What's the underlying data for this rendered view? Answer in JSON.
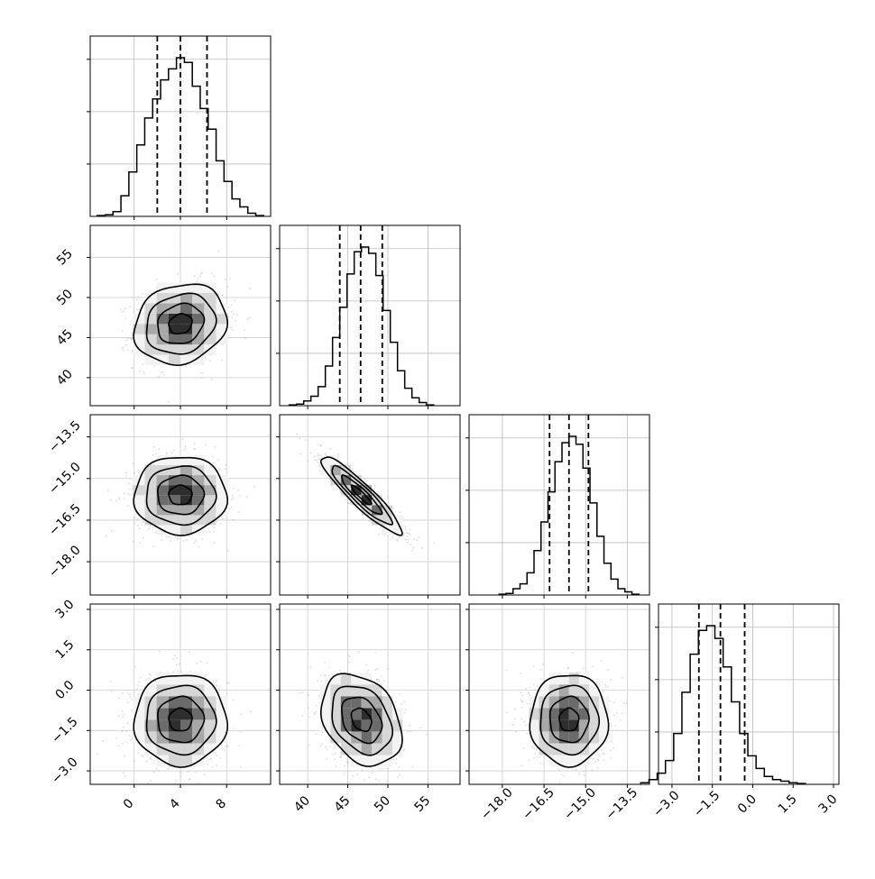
{
  "chart_data": {
    "type": "corner",
    "parameters": [
      {
        "ticks": [
          0,
          4,
          8
        ],
        "tick_labels": [
          "0",
          "4",
          "8"
        ],
        "range": [
          -3.8,
          11.8
        ],
        "quantiles": [
          2.0,
          4.0,
          6.3
        ],
        "mean": 4.0,
        "sd": 2.0
      },
      {
        "ticks": [
          40,
          45,
          50,
          55
        ],
        "tick_labels": [
          "40",
          "45",
          "50",
          "55"
        ],
        "range": [
          36.5,
          59.0
        ],
        "quantiles": [
          44.0,
          46.6,
          49.3
        ],
        "mean": 46.7,
        "sd": 2.5
      },
      {
        "ticks": [
          -18.0,
          -16.5,
          -15.0,
          -13.5
        ],
        "tick_labels": [
          "−18.0",
          "−16.5",
          "−15.0",
          "−13.5"
        ],
        "range": [
          -19.2,
          -12.7
        ],
        "quantiles": [
          -16.3,
          -15.6,
          -14.9
        ],
        "mean": -15.6,
        "sd": 0.7
      },
      {
        "ticks": [
          -3.0,
          -1.5,
          0.0,
          1.5,
          3.0
        ],
        "tick_labels": [
          "−3.0",
          "−1.5",
          "0.0",
          "1.5",
          "3.0"
        ],
        "range": [
          -3.5,
          3.2
        ],
        "quantiles": [
          -2.0,
          -1.2,
          -0.3
        ],
        "mean": -1.1,
        "sd": 0.85
      }
    ],
    "histograms": [
      [
        0.005,
        0.01,
        0.03,
        0.13,
        0.28,
        0.45,
        0.62,
        0.74,
        0.86,
        0.93,
        1.0,
        0.97,
        0.82,
        0.68,
        0.55,
        0.35,
        0.22,
        0.11,
        0.06,
        0.02,
        0.005
      ],
      [
        0.005,
        0.01,
        0.03,
        0.06,
        0.12,
        0.25,
        0.43,
        0.62,
        0.83,
        0.97,
        1.0,
        0.96,
        0.82,
        0.6,
        0.4,
        0.22,
        0.11,
        0.05,
        0.02,
        0.005
      ],
      [
        0.005,
        0.01,
        0.04,
        0.07,
        0.14,
        0.28,
        0.46,
        0.65,
        0.84,
        0.96,
        1.0,
        0.95,
        0.8,
        0.58,
        0.37,
        0.2,
        0.1,
        0.04,
        0.02,
        0.005
      ],
      [
        0.01,
        0.03,
        0.07,
        0.15,
        0.32,
        0.58,
        0.82,
        0.97,
        1.0,
        0.92,
        0.74,
        0.52,
        0.32,
        0.18,
        0.1,
        0.05,
        0.03,
        0.02,
        0.01,
        0.005
      ]
    ],
    "correlations": {
      "1_0": 0.15,
      "2_0": 0.0,
      "2_1": -0.92,
      "3_0": 0.0,
      "3_1": -0.3,
      "3_2": 0.0
    },
    "grid": true,
    "contour_levels_sigma": [
      0.5,
      1.0,
      1.5,
      2.0
    ]
  }
}
